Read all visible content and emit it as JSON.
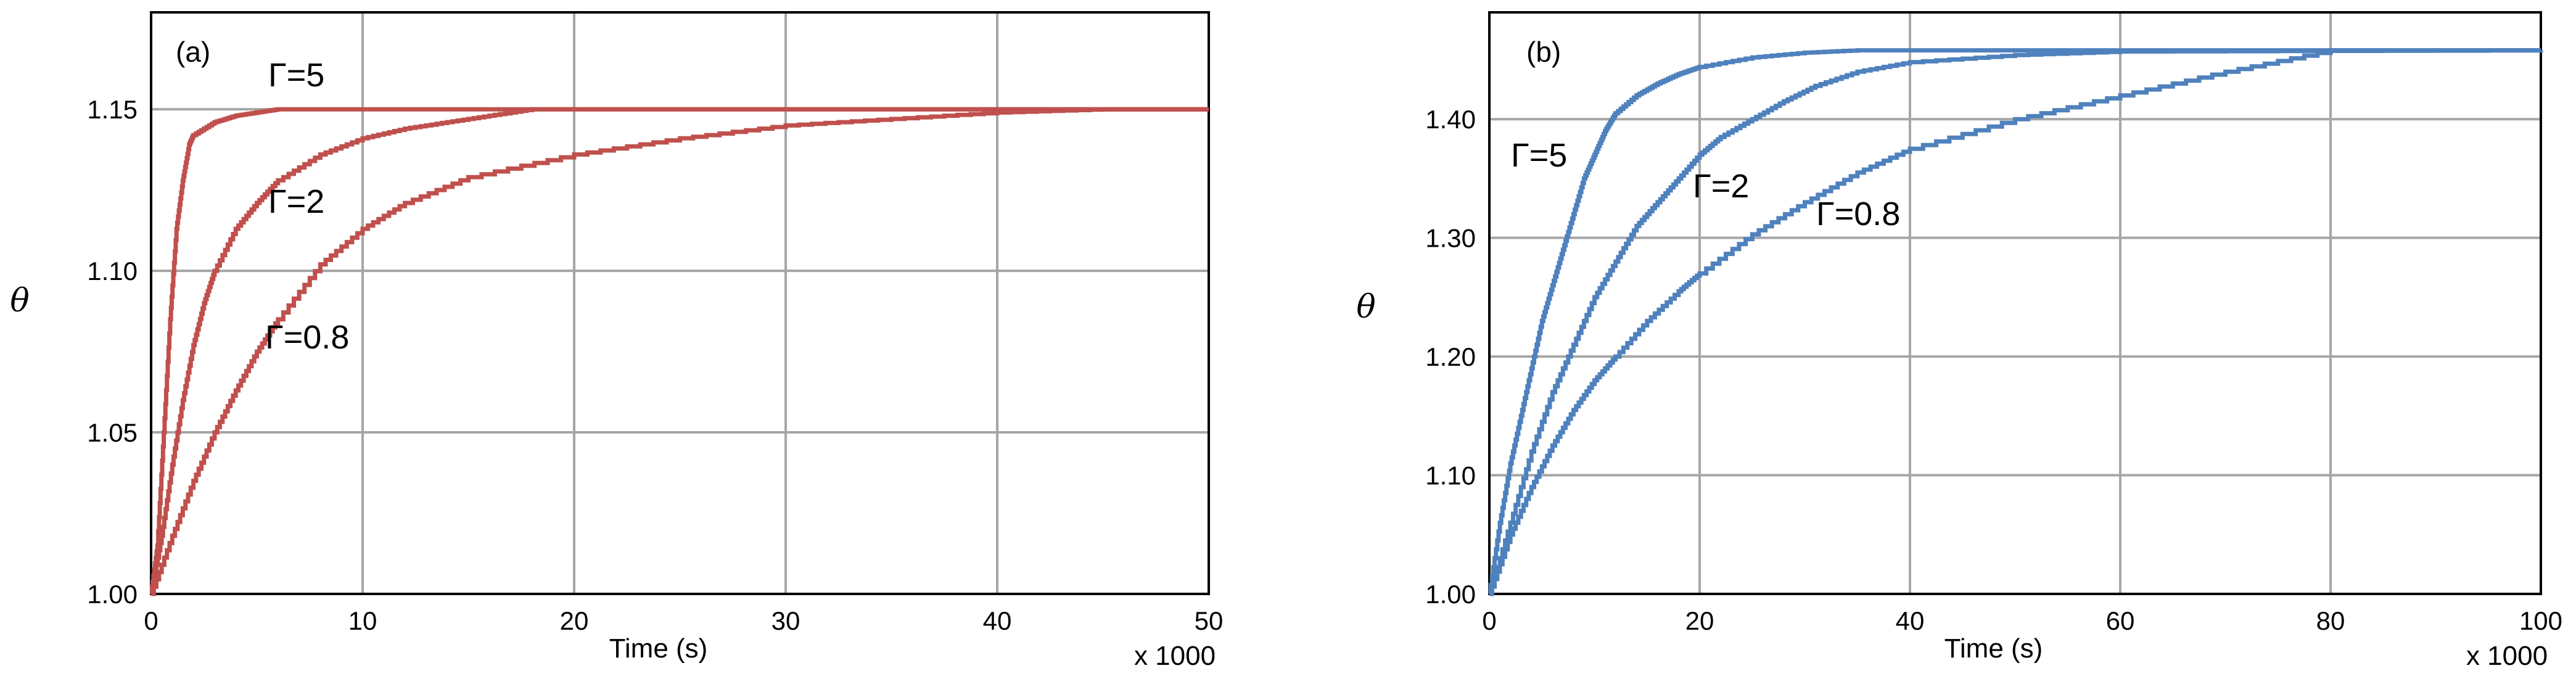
{
  "chart_data": [
    {
      "type": "line",
      "panel_label": "(a)",
      "xlabel": "Time (s)",
      "xlabel_multiplier": "x 1000",
      "ylabel": "θ",
      "xlim": [
        0,
        50
      ],
      "ylim": [
        1.0,
        1.18
      ],
      "x_ticks": [
        0,
        10,
        20,
        30,
        40,
        50
      ],
      "x_tick_labels": [
        "0",
        "10",
        "20",
        "30",
        "40",
        "50"
      ],
      "y_ticks": [
        1.0,
        1.05,
        1.1,
        1.15
      ],
      "y_tick_labels": [
        "1.00",
        "1.05",
        "1.10",
        "1.15"
      ],
      "grid": true,
      "line_color": "#c0504d",
      "series": [
        {
          "label": "Γ=5",
          "x": [
            0,
            0.3,
            0.6,
            0.9,
            1.2,
            1.5,
            1.8,
            2.0,
            3.0,
            4.0,
            5.0,
            6.0,
            50
          ],
          "y": [
            1.0,
            1.015,
            1.05,
            1.085,
            1.113,
            1.128,
            1.139,
            1.142,
            1.146,
            1.148,
            1.149,
            1.15,
            1.15
          ]
        },
        {
          "label": "Γ=2",
          "x": [
            0,
            0.5,
            1,
            1.5,
            2,
            2.5,
            3,
            4,
            5,
            6,
            8,
            10,
            12,
            14,
            16,
            18,
            50
          ],
          "y": [
            1.0,
            1.018,
            1.04,
            1.06,
            1.077,
            1.09,
            1.1,
            1.113,
            1.121,
            1.128,
            1.136,
            1.141,
            1.144,
            1.146,
            1.148,
            1.15,
            1.15
          ]
        },
        {
          "label": "Γ=0.8",
          "x": [
            0,
            1,
            2,
            3,
            4,
            5,
            6,
            8,
            10,
            12,
            15,
            20,
            25,
            30,
            35,
            40,
            45,
            50
          ],
          "y": [
            1.0,
            1.018,
            1.035,
            1.05,
            1.063,
            1.075,
            1.085,
            1.102,
            1.113,
            1.121,
            1.129,
            1.136,
            1.141,
            1.145,
            1.147,
            1.149,
            1.15,
            1.15
          ]
        }
      ]
    },
    {
      "type": "line",
      "panel_label": "(b)",
      "xlabel": "Time (s)",
      "xlabel_multiplier": "x 1000",
      "ylabel": "θ",
      "xlim": [
        0,
        100
      ],
      "ylim": [
        1.0,
        1.49
      ],
      "x_ticks": [
        0,
        20,
        40,
        60,
        80,
        100
      ],
      "x_tick_labels": [
        "0",
        "20",
        "40",
        "60",
        "80",
        "100"
      ],
      "y_ticks": [
        1.0,
        1.1,
        1.2,
        1.3,
        1.4
      ],
      "y_tick_labels": [
        "1.00",
        "1.10",
        "1.20",
        "1.30",
        "1.40"
      ],
      "grid": true,
      "line_color": "#4f81bd",
      "series": [
        {
          "label": "Γ=5",
          "x": [
            0,
            1,
            2,
            3,
            4,
            5,
            6,
            7,
            8,
            9,
            10,
            11,
            12,
            14,
            16,
            18,
            20,
            25,
            30,
            35,
            100
          ],
          "y": [
            1.0,
            1.06,
            1.11,
            1.15,
            1.19,
            1.23,
            1.26,
            1.29,
            1.32,
            1.35,
            1.37,
            1.39,
            1.405,
            1.42,
            1.43,
            1.438,
            1.444,
            1.452,
            1.456,
            1.458,
            1.458
          ]
        },
        {
          "label": "Γ=2",
          "x": [
            0,
            2,
            4,
            6,
            8,
            10,
            12,
            14,
            16,
            18,
            20,
            22,
            25,
            28,
            31,
            35,
            40,
            50,
            60,
            100
          ],
          "y": [
            1.0,
            1.06,
            1.12,
            1.17,
            1.21,
            1.25,
            1.28,
            1.31,
            1.33,
            1.35,
            1.37,
            1.385,
            1.4,
            1.415,
            1.428,
            1.44,
            1.448,
            1.454,
            1.457,
            1.458
          ]
        },
        {
          "label": "Γ=0.8",
          "x": [
            0,
            2,
            4,
            6,
            8,
            10,
            12,
            15,
            18,
            20,
            25,
            30,
            35,
            40,
            50,
            60,
            70,
            80,
            100
          ],
          "y": [
            1.0,
            1.05,
            1.09,
            1.125,
            1.155,
            1.18,
            1.2,
            1.23,
            1.255,
            1.27,
            1.303,
            1.33,
            1.355,
            1.375,
            1.4,
            1.42,
            1.44,
            1.458,
            1.458
          ]
        }
      ]
    }
  ]
}
